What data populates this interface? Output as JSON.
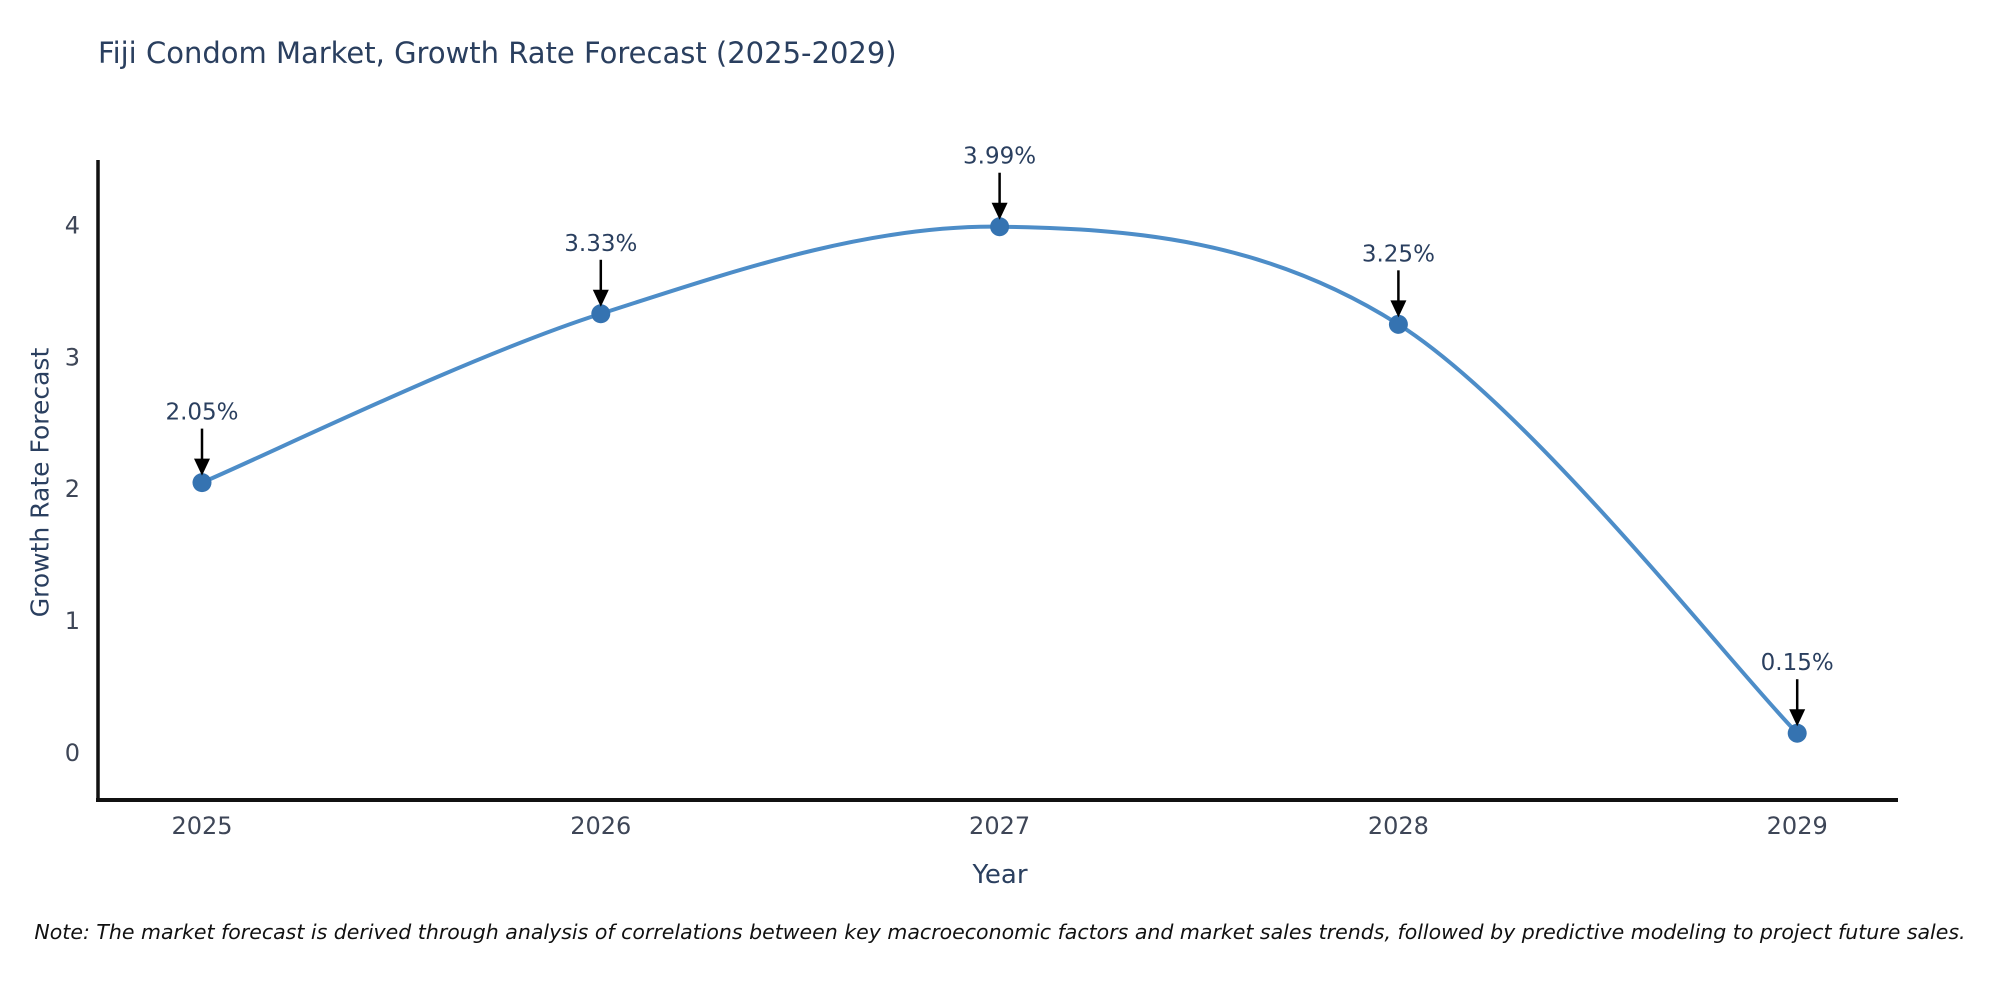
{
  "title": "Fiji Condom Market, Growth Rate Forecast (2025-2029)",
  "note": "Note: The market forecast is derived through analysis of correlations between key macroeconomic factors and market sales trends, followed by predictive modeling to project future sales.",
  "chart_data": {
    "type": "line",
    "curve": "spline",
    "title": "Fiji Condom Market, Growth Rate Forecast (2025-2029)",
    "xlabel": "Year",
    "ylabel": "Growth Rate Forecast",
    "x": [
      2025,
      2026,
      2027,
      2028,
      2029
    ],
    "xticks": [
      "2025",
      "2026",
      "2027",
      "2028",
      "2029"
    ],
    "yticks": [
      0,
      1,
      2,
      3,
      4
    ],
    "ylim": [
      -0.36,
      4.5
    ],
    "grid": false,
    "legend_position": "none",
    "series": [
      {
        "name": "Growth Rate Forecast",
        "values": [
          2.05,
          3.33,
          3.99,
          3.25,
          0.15
        ]
      }
    ],
    "annotations": [
      "2.05%",
      "3.33%",
      "3.99%",
      "3.25%",
      "0.15%"
    ],
    "colors": {
      "line": "#4d8dc8",
      "marker": "#3573b1",
      "axis": "#111111",
      "annotation_text": "#2a3f5f",
      "annotation_arrow": "#000000",
      "tick_text": "#3e4657",
      "title_text": "#2a3f5f"
    }
  }
}
